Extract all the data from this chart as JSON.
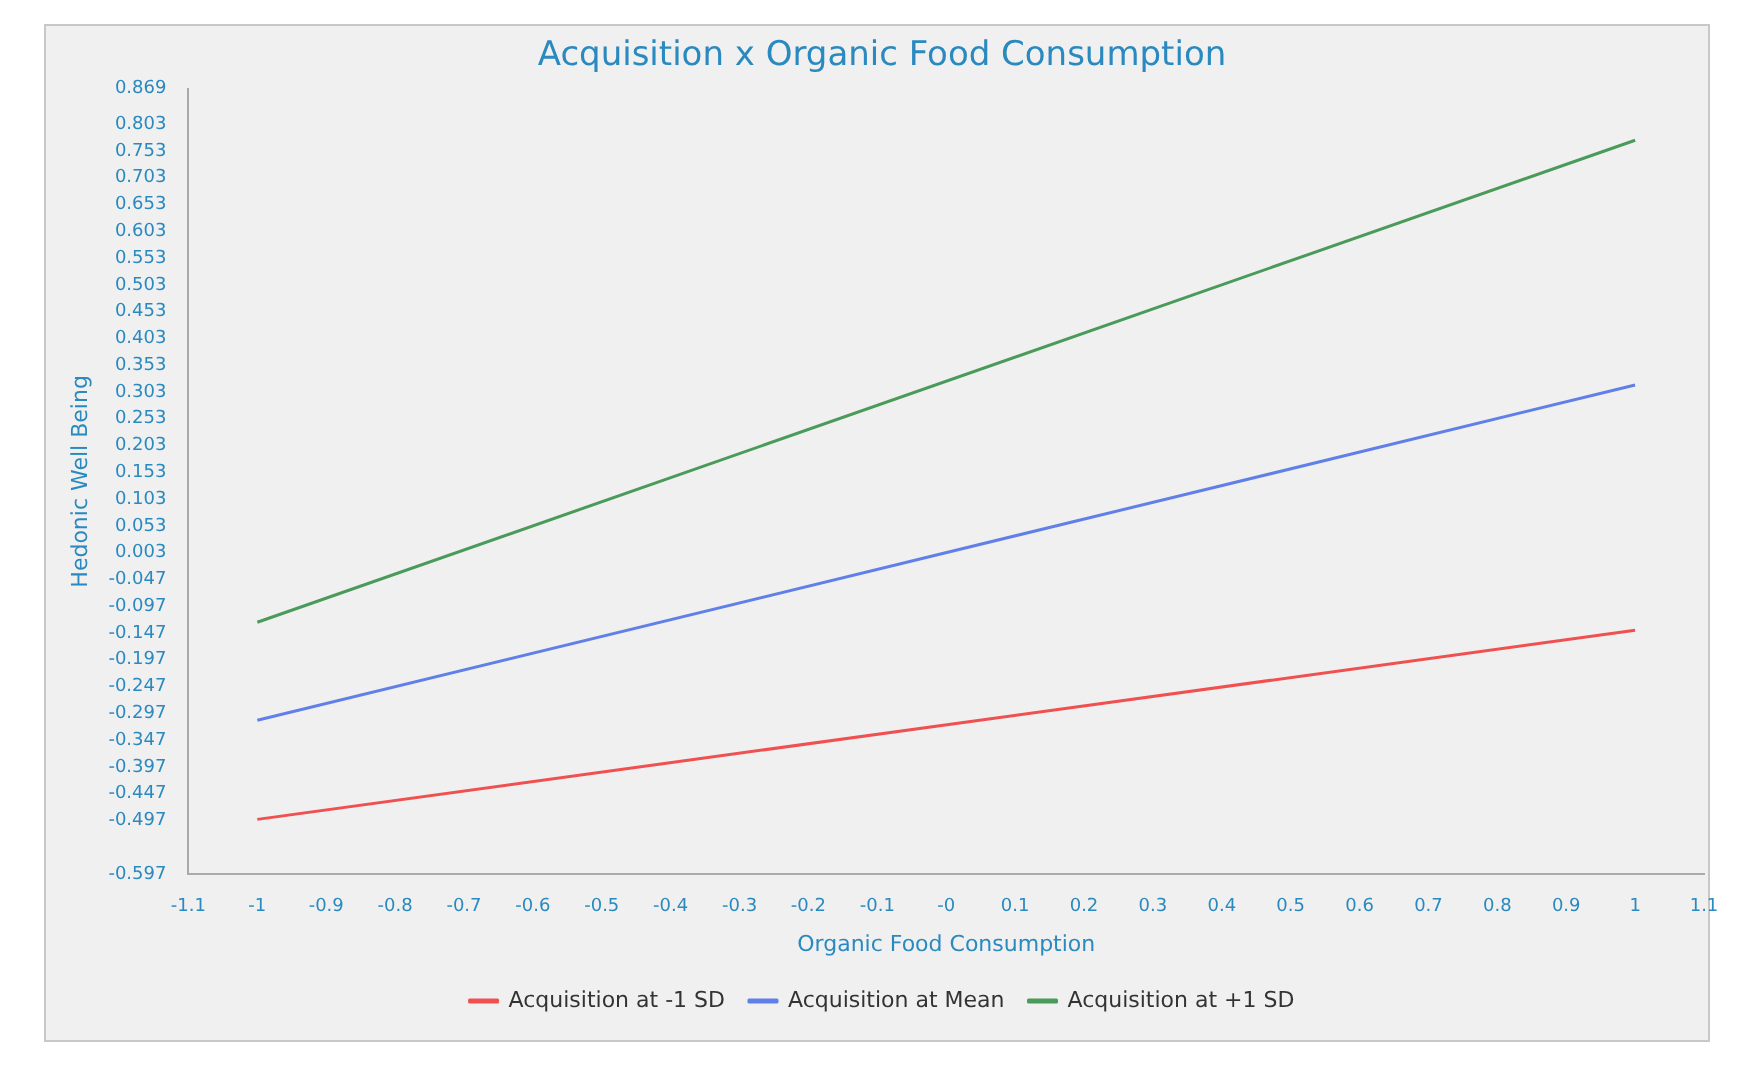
{
  "chart_data": {
    "type": "line",
    "title": "Acquisition x Organic Food Consumption",
    "xlabel": "Organic Food Consumption",
    "ylabel": "Hedonic Well Being",
    "x": [
      -1,
      1
    ],
    "series": [
      {
        "name": "Acquisition at -1 SD",
        "color": "#f05050",
        "values": [
          -0.495,
          -0.142
        ]
      },
      {
        "name": "Acquisition at Mean",
        "color": "#6080e8",
        "values": [
          -0.31,
          0.316
        ]
      },
      {
        "name": "Acquisition at +1 SD",
        "color": "#4a9a5a",
        "values": [
          -0.127,
          0.773
        ]
      }
    ],
    "xlim": [
      -1.1,
      1.1
    ],
    "xticks": [
      -1.1,
      -1,
      -0.9,
      -0.8,
      -0.7,
      -0.6,
      -0.5,
      -0.4,
      -0.3,
      -0.2,
      -0.1,
      {
        "value": 0,
        "label": "-0"
      },
      0.1,
      0.2,
      0.3,
      0.4,
      0.5,
      0.6,
      0.7,
      0.8,
      0.9,
      1,
      1.1
    ],
    "ylim": [
      -0.597,
      0.869
    ],
    "yticks": [
      0.869,
      0.803,
      0.753,
      0.703,
      0.653,
      0.603,
      0.553,
      0.503,
      0.453,
      0.403,
      0.353,
      0.303,
      0.253,
      0.203,
      0.153,
      0.103,
      0.053,
      0.003,
      -0.047,
      -0.097,
      -0.147,
      -0.197,
      -0.247,
      -0.297,
      -0.347,
      -0.397,
      -0.447,
      -0.497,
      -0.597
    ],
    "grid": false,
    "legend": "bottom",
    "marker": "none",
    "line_style": "solid"
  }
}
